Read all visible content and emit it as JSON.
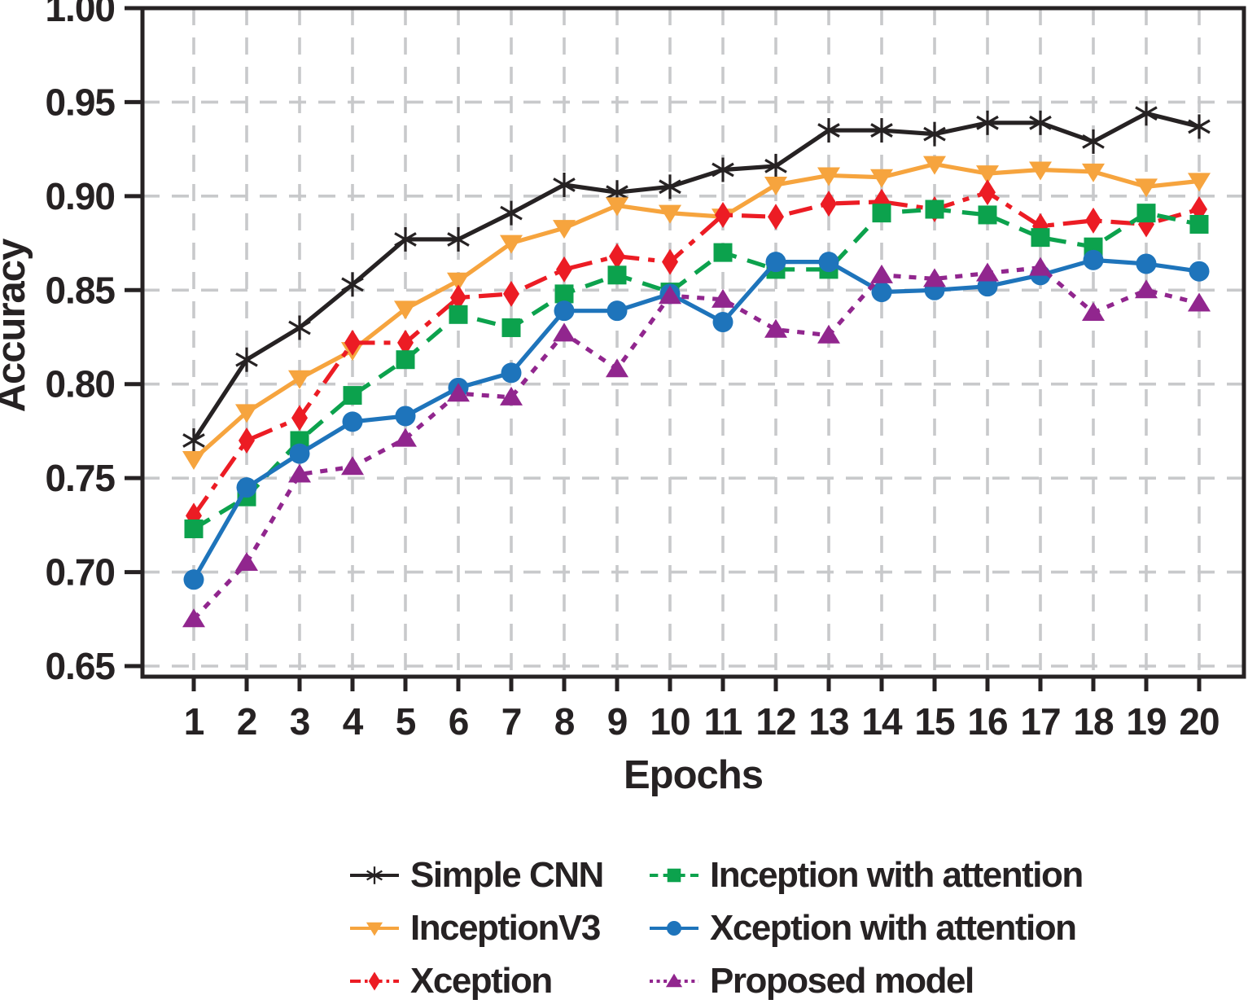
{
  "chart_data": {
    "type": "line",
    "title": "",
    "xlabel": "Epochs",
    "ylabel": "Accuracy",
    "x": [
      1,
      2,
      3,
      4,
      5,
      6,
      7,
      8,
      9,
      10,
      11,
      12,
      13,
      14,
      15,
      16,
      17,
      18,
      19,
      20
    ],
    "x_tick_labels": [
      "1",
      "2",
      "3",
      "4",
      "5",
      "6",
      "7",
      "8",
      "9",
      "10",
      "11",
      "12",
      "13",
      "14",
      "15",
      "16",
      "17",
      "18",
      "19",
      "20"
    ],
    "y_ticks": [
      0.65,
      0.7,
      0.75,
      0.8,
      0.85,
      0.9,
      0.95,
      1.0
    ],
    "y_tick_labels": [
      "0.65",
      "0.70",
      "0.75",
      "0.80",
      "0.85",
      "0.90",
      "0.95",
      "1.00"
    ],
    "ylim": [
      0.644,
      1.0
    ],
    "grid": true,
    "legend_position": "bottom",
    "colors": {
      "axis": "#262223",
      "gridline": "#C8C9CB",
      "simple_cnn": "#262223",
      "inceptionv3": "#F6A43E",
      "xception": "#EC1C24",
      "inception_attention": "#0CA24D",
      "xception_attention": "#1E74BB",
      "proposed": "#91268E"
    },
    "series": [
      {
        "name": "Simple CNN",
        "color": "#262223",
        "line": "solid",
        "marker": "asterisk",
        "values": [
          0.77,
          0.813,
          0.83,
          0.853,
          0.877,
          0.877,
          0.891,
          0.906,
          0.902,
          0.905,
          0.914,
          0.916,
          0.935,
          0.935,
          0.933,
          0.939,
          0.939,
          0.929,
          0.944,
          0.937
        ]
      },
      {
        "name": "InceptionV3",
        "color": "#F6A43E",
        "line": "solid",
        "marker": "triangle-down",
        "values": [
          0.76,
          0.785,
          0.803,
          0.818,
          0.84,
          0.855,
          0.875,
          0.883,
          0.895,
          0.891,
          0.889,
          0.906,
          0.911,
          0.91,
          0.917,
          0.912,
          0.914,
          0.913,
          0.905,
          0.908
        ]
      },
      {
        "name": "Xception",
        "color": "#EC1C24",
        "line": "dashdot",
        "marker": "diamond",
        "values": [
          0.73,
          0.77,
          0.782,
          0.822,
          0.822,
          0.846,
          0.848,
          0.861,
          0.868,
          0.865,
          0.89,
          0.889,
          0.896,
          0.897,
          0.893,
          0.902,
          0.884,
          0.887,
          0.885,
          0.893
        ]
      },
      {
        "name": "Inception with attention",
        "color": "#0CA24D",
        "line": "dashed",
        "marker": "square",
        "values": [
          0.723,
          0.74,
          0.77,
          0.794,
          0.813,
          0.837,
          0.83,
          0.848,
          0.858,
          0.849,
          0.87,
          0.861,
          0.861,
          0.891,
          0.893,
          0.89,
          0.878,
          0.873,
          0.891,
          0.885
        ]
      },
      {
        "name": "Xception with attention",
        "color": "#1E74BB",
        "line": "solid",
        "marker": "circle",
        "values": [
          0.696,
          0.745,
          0.763,
          0.78,
          0.783,
          0.798,
          0.806,
          0.839,
          0.839,
          0.848,
          0.833,
          0.865,
          0.865,
          0.849,
          0.85,
          0.852,
          0.858,
          0.866,
          0.864,
          0.86
        ]
      },
      {
        "name": "Proposed model",
        "color": "#91268E",
        "line": "dotted",
        "marker": "triangle-up",
        "values": [
          0.675,
          0.705,
          0.752,
          0.756,
          0.771,
          0.795,
          0.793,
          0.827,
          0.808,
          0.847,
          0.845,
          0.829,
          0.826,
          0.858,
          0.856,
          0.859,
          0.862,
          0.838,
          0.85,
          0.843
        ]
      }
    ]
  }
}
